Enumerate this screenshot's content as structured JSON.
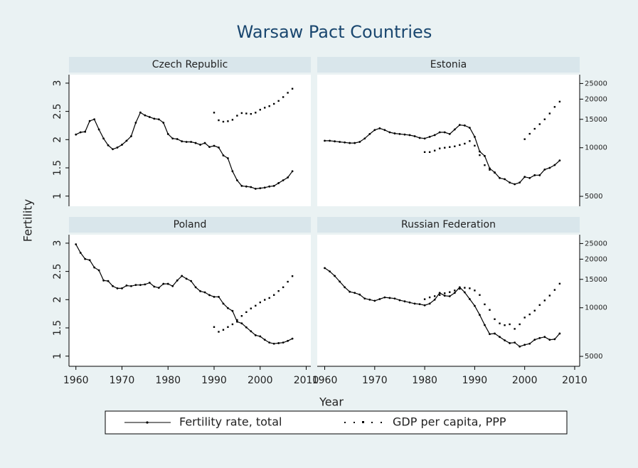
{
  "title": "Warsaw Pact Countries",
  "ylabel": "Fertility",
  "xlabel": "Year",
  "chart_data": [
    {
      "type": "line",
      "title": "Czech Republic",
      "x": [
        1960,
        1961,
        1962,
        1963,
        1964,
        1965,
        1966,
        1967,
        1968,
        1969,
        1970,
        1971,
        1972,
        1973,
        1974,
        1975,
        1976,
        1977,
        1978,
        1979,
        1980,
        1981,
        1982,
        1983,
        1984,
        1985,
        1986,
        1987,
        1988,
        1989,
        1990,
        1991,
        1992,
        1993,
        1994,
        1995,
        1996,
        1997,
        1998,
        1999,
        2000,
        2001,
        2002,
        2003,
        2004,
        2005,
        2006,
        2007
      ],
      "series": [
        {
          "name": "Fertility rate, total",
          "color": "#000000",
          "values": [
            2.09,
            2.13,
            2.14,
            2.33,
            2.36,
            2.18,
            2.02,
            1.9,
            1.83,
            1.86,
            1.91,
            1.98,
            2.06,
            2.3,
            2.48,
            2.43,
            2.4,
            2.37,
            2.36,
            2.3,
            2.1,
            2.02,
            2.01,
            1.97,
            1.96,
            1.96,
            1.94,
            1.91,
            1.94,
            1.87,
            1.89,
            1.86,
            1.72,
            1.67,
            1.44,
            1.28,
            1.18,
            1.17,
            1.16,
            1.13,
            1.14,
            1.15,
            1.17,
            1.18,
            1.23,
            1.28,
            1.33,
            1.44
          ]
        },
        {
          "name": "GDP per capita, PPP",
          "color": "#000000",
          "axis": "y2",
          "values": [
            null,
            null,
            null,
            null,
            null,
            null,
            null,
            null,
            null,
            null,
            null,
            null,
            null,
            null,
            null,
            null,
            null,
            null,
            null,
            null,
            null,
            null,
            null,
            null,
            null,
            null,
            null,
            null,
            null,
            null,
            16500,
            14800,
            14500,
            14600,
            14900,
            15800,
            16400,
            16300,
            16200,
            16500,
            17200,
            17700,
            18100,
            18700,
            19500,
            20600,
            21900,
            23200
          ]
        }
      ],
      "xlim": [
        1958.5,
        2011
      ],
      "ylim": [
        0.82,
        3.15
      ],
      "y2lim": [
        4340,
        28350
      ],
      "y2log": true,
      "yticks": [
        1,
        1.5,
        2,
        2.5,
        3
      ]
    },
    {
      "type": "line",
      "title": "Estonia",
      "x": [
        1960,
        1961,
        1962,
        1963,
        1964,
        1965,
        1966,
        1967,
        1968,
        1969,
        1970,
        1971,
        1972,
        1973,
        1974,
        1975,
        1976,
        1977,
        1978,
        1979,
        1980,
        1981,
        1982,
        1983,
        1984,
        1985,
        1986,
        1987,
        1988,
        1989,
        1990,
        1991,
        1992,
        1993,
        1994,
        1995,
        1996,
        1997,
        1998,
        1999,
        2000,
        2001,
        2002,
        2003,
        2004,
        2005,
        2006,
        2007
      ],
      "series": [
        {
          "name": "Fertility rate, total",
          "color": "#000000",
          "values": [
            1.98,
            1.98,
            1.97,
            1.96,
            1.95,
            1.94,
            1.94,
            1.96,
            2.02,
            2.1,
            2.17,
            2.2,
            2.17,
            2.13,
            2.11,
            2.1,
            2.09,
            2.08,
            2.06,
            2.03,
            2.02,
            2.05,
            2.08,
            2.13,
            2.13,
            2.1,
            2.18,
            2.26,
            2.25,
            2.21,
            2.05,
            1.79,
            1.71,
            1.49,
            1.42,
            1.32,
            1.3,
            1.24,
            1.21,
            1.24,
            1.34,
            1.32,
            1.37,
            1.37,
            1.47,
            1.5,
            1.55,
            1.63
          ]
        },
        {
          "name": "GDP per capita, PPP",
          "color": "#000000",
          "axis": "y2",
          "values": [
            null,
            null,
            null,
            null,
            null,
            null,
            null,
            null,
            null,
            null,
            null,
            null,
            null,
            null,
            null,
            null,
            null,
            null,
            null,
            null,
            9400,
            9400,
            9600,
            9900,
            10000,
            10100,
            10200,
            10400,
            10600,
            11000,
            10300,
            9000,
            7800,
            7300,
            7000,
            null,
            null,
            null,
            null,
            null,
            11300,
            12200,
            13100,
            14000,
            15000,
            16300,
            17900,
            19300
          ]
        }
      ],
      "xlim": [
        1958.5,
        2011
      ],
      "ylim": [
        0.82,
        3.15
      ],
      "y2lim": [
        4340,
        28350
      ],
      "y2log": true,
      "y2ticks": [
        5000,
        10000,
        15000,
        20000,
        25000
      ]
    },
    {
      "type": "line",
      "title": "Poland",
      "x": [
        1960,
        1961,
        1962,
        1963,
        1964,
        1965,
        1966,
        1967,
        1968,
        1969,
        1970,
        1971,
        1972,
        1973,
        1974,
        1975,
        1976,
        1977,
        1978,
        1979,
        1980,
        1981,
        1982,
        1983,
        1984,
        1985,
        1986,
        1987,
        1988,
        1989,
        1990,
        1991,
        1992,
        1993,
        1994,
        1995,
        1996,
        1997,
        1998,
        1999,
        2000,
        2001,
        2002,
        2003,
        2004,
        2005,
        2006,
        2007
      ],
      "series": [
        {
          "name": "Fertility rate, total",
          "color": "#000000",
          "values": [
            2.98,
            2.83,
            2.72,
            2.7,
            2.57,
            2.52,
            2.34,
            2.33,
            2.24,
            2.2,
            2.2,
            2.25,
            2.24,
            2.26,
            2.26,
            2.27,
            2.3,
            2.23,
            2.21,
            2.28,
            2.28,
            2.24,
            2.34,
            2.42,
            2.37,
            2.33,
            2.22,
            2.15,
            2.13,
            2.08,
            2.05,
            2.05,
            1.93,
            1.85,
            1.8,
            1.61,
            1.58,
            1.51,
            1.44,
            1.37,
            1.35,
            1.29,
            1.24,
            1.22,
            1.23,
            1.24,
            1.27,
            1.31
          ]
        },
        {
          "name": "GDP per capita, PPP",
          "color": "#000000",
          "axis": "y2",
          "values": [
            null,
            null,
            null,
            null,
            null,
            null,
            null,
            null,
            null,
            null,
            null,
            null,
            null,
            null,
            null,
            null,
            null,
            null,
            null,
            null,
            null,
            null,
            null,
            null,
            null,
            null,
            null,
            null,
            null,
            null,
            7600,
            7100,
            7300,
            7600,
            7900,
            8400,
            8900,
            9400,
            9900,
            10300,
            10800,
            11200,
            11500,
            12000,
            12700,
            13400,
            14500,
            15700
          ]
        }
      ],
      "xlim": [
        1958.5,
        2011
      ],
      "ylim": [
        0.82,
        3.15
      ],
      "y2lim": [
        4340,
        28350
      ],
      "y2log": true,
      "yticks": [
        1,
        1.5,
        2,
        2.5,
        3
      ],
      "xticks": [
        1960,
        1970,
        1980,
        1990,
        2000,
        2010
      ]
    },
    {
      "type": "line",
      "title": "Russian Federation",
      "x": [
        1960,
        1961,
        1962,
        1963,
        1964,
        1965,
        1966,
        1967,
        1968,
        1969,
        1970,
        1971,
        1972,
        1973,
        1974,
        1975,
        1976,
        1977,
        1978,
        1979,
        1980,
        1981,
        1982,
        1983,
        1984,
        1985,
        1986,
        1987,
        1988,
        1989,
        1990,
        1991,
        1992,
        1993,
        1994,
        1995,
        1996,
        1997,
        1998,
        1999,
        2000,
        2001,
        2002,
        2003,
        2004,
        2005,
        2006,
        2007
      ],
      "series": [
        {
          "name": "Fertility rate, total",
          "color": "#000000",
          "values": [
            2.56,
            2.5,
            2.42,
            2.32,
            2.22,
            2.14,
            2.12,
            2.09,
            2.02,
            2.0,
            1.98,
            2.01,
            2.04,
            2.03,
            2.02,
            1.99,
            1.97,
            1.95,
            1.93,
            1.92,
            1.9,
            1.93,
            2.0,
            2.12,
            2.07,
            2.06,
            2.12,
            2.22,
            2.13,
            2.01,
            1.89,
            1.73,
            1.55,
            1.39,
            1.4,
            1.34,
            1.28,
            1.23,
            1.24,
            1.17,
            1.2,
            1.22,
            1.29,
            1.32,
            1.34,
            1.29,
            1.3,
            1.4
          ]
        },
        {
          "name": "GDP per capita, PPP",
          "color": "#000000",
          "axis": "y2",
          "values": [
            null,
            null,
            null,
            null,
            null,
            null,
            null,
            null,
            null,
            null,
            null,
            null,
            null,
            null,
            null,
            null,
            null,
            null,
            null,
            null,
            11300,
            11600,
            11800,
            12000,
            12300,
            12500,
            12800,
            13100,
            13300,
            13200,
            12800,
            12000,
            10500,
            9700,
            8500,
            8000,
            7800,
            7900,
            7400,
            7900,
            8700,
            9100,
            9600,
            10400,
            11100,
            11900,
            12900,
            14100
          ]
        }
      ],
      "xlim": [
        1958.5,
        2011
      ],
      "ylim": [
        0.82,
        3.15
      ],
      "y2lim": [
        4340,
        28350
      ],
      "y2log": true,
      "xticks": [
        1960,
        1970,
        1980,
        1990,
        2000,
        2010
      ],
      "y2ticks": [
        5000,
        10000,
        15000,
        20000,
        25000
      ]
    }
  ]
}
